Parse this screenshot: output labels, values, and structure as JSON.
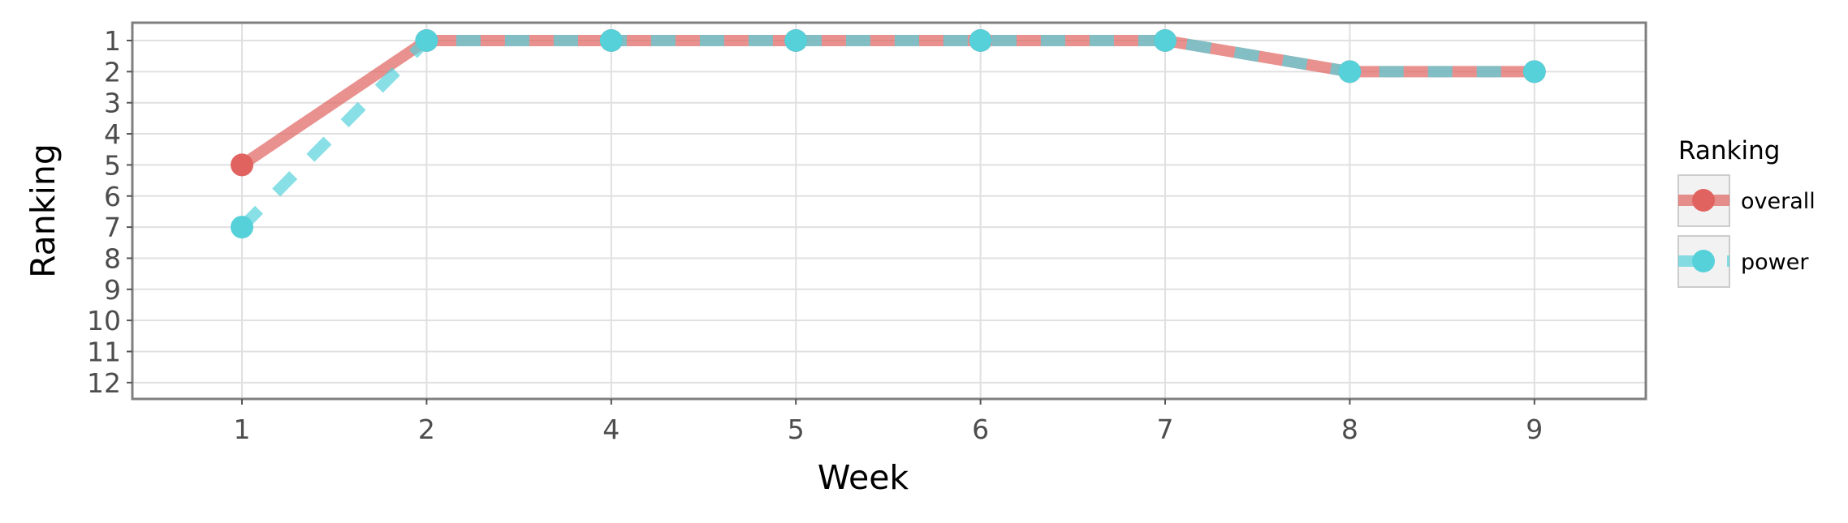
{
  "chart_data": {
    "type": "line",
    "xlabel": "Week",
    "ylabel": "Ranking",
    "categories": [
      "1",
      "2",
      "4",
      "5",
      "6",
      "7",
      "8",
      "9"
    ],
    "y_ticks": [
      "1",
      "2",
      "3",
      "4",
      "5",
      "6",
      "7",
      "8",
      "9",
      "10",
      "11",
      "12"
    ],
    "ylim": [
      12.5,
      0.5
    ],
    "y_reversed": true,
    "grid": true,
    "legend_title": "Ranking",
    "legend_position": "right",
    "series": [
      {
        "name": "overall",
        "values": [
          5,
          1,
          1,
          1,
          1,
          1,
          2,
          2
        ],
        "color": "#E06360",
        "line_style": "solid"
      },
      {
        "name": "power",
        "values": [
          7,
          1,
          1,
          1,
          1,
          1,
          2,
          2
        ],
        "color": "#56D1DA",
        "line_style": "dashed"
      }
    ]
  }
}
